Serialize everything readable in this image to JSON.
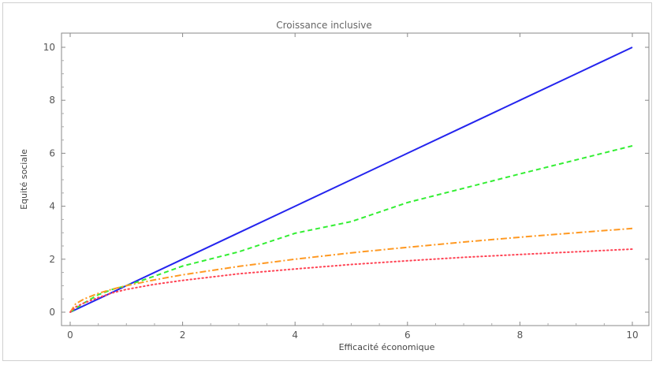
{
  "chart_data": {
    "type": "line",
    "title": "Croissance   inclusive",
    "xlabel": "Efficacité économique",
    "ylabel": "Equité sociale",
    "xlim": [
      0,
      10
    ],
    "ylim": [
      0,
      10.4
    ],
    "xticks": [
      "0",
      "2",
      "4",
      "6",
      "8",
      "10"
    ],
    "yticks": [
      "0",
      "2",
      "4",
      "6",
      "8",
      "10"
    ],
    "grid": false,
    "legend": "none",
    "series": [
      {
        "style": "solid",
        "color": "#2424ee",
        "x": [
          0,
          1,
          2,
          3,
          4,
          5,
          6,
          7,
          8,
          9,
          10
        ],
        "y": [
          0,
          1,
          2,
          3,
          4,
          5,
          6,
          7,
          8,
          9,
          10
        ]
      },
      {
        "style": "dashed",
        "color": "#33ee33",
        "x": [
          0,
          0.25,
          0.5,
          0.75,
          1,
          1.5,
          2,
          3,
          4,
          5,
          6,
          7,
          8,
          9,
          10
        ],
        "y": [
          0,
          0.35,
          0.66,
          0.86,
          1.0,
          1.36,
          1.74,
          2.28,
          2.98,
          3.42,
          4.14,
          4.68,
          5.22,
          5.75,
          6.28
        ]
      },
      {
        "style": "dashdot",
        "color": "#ff9922",
        "x": [
          0,
          0.1,
          0.25,
          0.5,
          0.75,
          1,
          1.5,
          2,
          3,
          4,
          5,
          6,
          7,
          8,
          9,
          10
        ],
        "y": [
          0,
          0.32,
          0.5,
          0.71,
          0.87,
          1.0,
          1.22,
          1.41,
          1.73,
          2.0,
          2.24,
          2.45,
          2.65,
          2.83,
          3.0,
          3.16
        ]
      },
      {
        "style": "dotted",
        "color": "#ff4455",
        "x": [
          0,
          0.1,
          0.25,
          0.5,
          0.75,
          1,
          1.5,
          2,
          3,
          4,
          5,
          6,
          7,
          8,
          9,
          10
        ],
        "y": [
          0,
          0.2,
          0.35,
          0.55,
          0.73,
          0.86,
          1.05,
          1.2,
          1.45,
          1.63,
          1.8,
          1.94,
          2.07,
          2.18,
          2.28,
          2.38
        ]
      }
    ]
  }
}
